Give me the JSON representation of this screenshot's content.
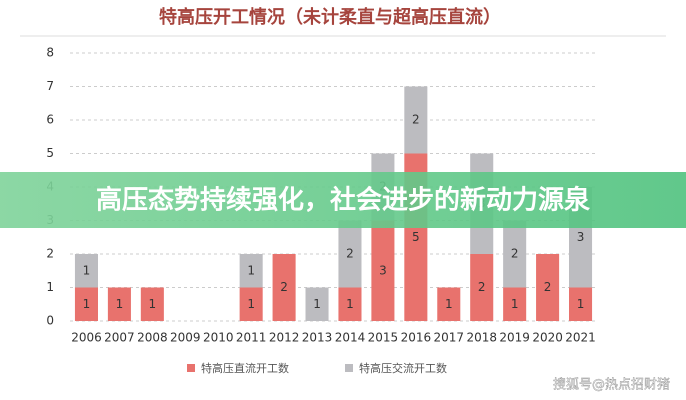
{
  "chart_data": {
    "type": "stacked_bar",
    "title": "特高压开工情况（未计柔直与超高压直流）",
    "banner": "高压态势持续强化，社会进步的新动力源泉",
    "watermark": "搜狐号@热点招财猪",
    "categories": [
      "2006",
      "2007",
      "2008",
      "2009",
      "2010",
      "2011",
      "2012",
      "2013",
      "2014",
      "2015",
      "2016",
      "2017",
      "2018",
      "2019",
      "2020",
      "2021"
    ],
    "series": [
      {
        "name": "特高压直流开工数",
        "color": "#e8726d",
        "values": [
          1,
          1,
          1,
          0,
          0,
          1,
          2,
          0,
          1,
          3,
          5,
          1,
          2,
          1,
          2,
          1
        ]
      },
      {
        "name": "特高压交流开工数",
        "color": "#bcbcc0",
        "values": [
          1,
          0,
          0,
          0,
          0,
          1,
          0,
          1,
          2,
          2,
          2,
          0,
          3,
          2,
          0,
          3
        ]
      }
    ],
    "ylim": [
      0,
      8
    ],
    "yticks": [
      0,
      1,
      2,
      3,
      4,
      5,
      6,
      7,
      8
    ],
    "grid": true,
    "legend": "bottom"
  }
}
